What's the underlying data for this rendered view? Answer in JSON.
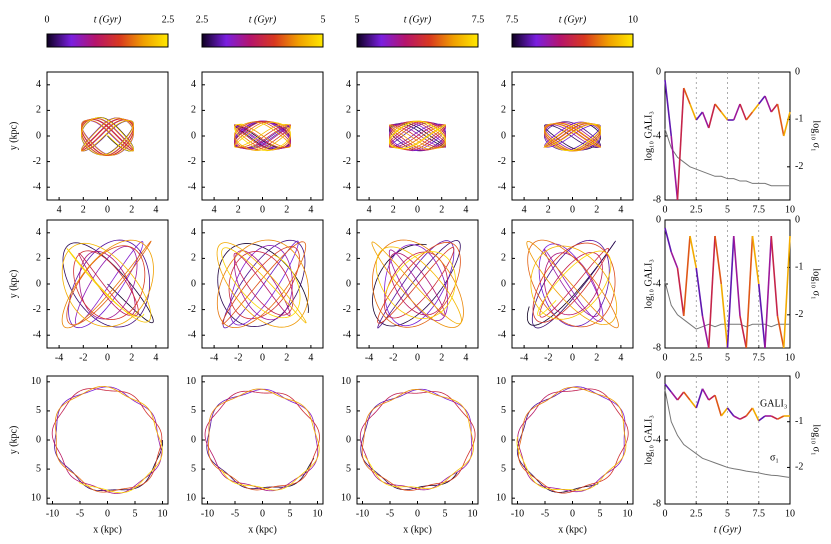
{
  "colormap": [
    "#0d0020",
    "#7a1fe0",
    "#b5146c",
    "#d8381f",
    "#f0a000",
    "#ffe800"
  ],
  "colorbars": [
    {
      "ticks": [
        0,
        2.5
      ],
      "label": "t (Gyr)"
    },
    {
      "ticks": [
        2.5,
        5
      ],
      "label": "t (Gyr)"
    },
    {
      "ticks": [
        5,
        7.5
      ],
      "label": "t (Gyr)"
    },
    {
      "ticks": [
        7.5,
        10
      ],
      "label": "t (Gyr)"
    }
  ],
  "orbit_rows": [
    {
      "xlim": [
        -5,
        5
      ],
      "ylim": [
        -5,
        5
      ],
      "xticks": [
        {
          "value": -4,
          "label": "4"
        },
        {
          "value": -2,
          "label": "2"
        },
        0,
        2,
        4
      ],
      "yticks": [
        4,
        2,
        0,
        -2,
        -4
      ],
      "ylabel": "y (kpc)"
    },
    {
      "xlim": [
        -5,
        5
      ],
      "ylim": [
        -5,
        5
      ],
      "xticks": [
        -4,
        -2,
        0,
        2,
        4
      ],
      "yticks": [
        4,
        2,
        0,
        -2,
        -4
      ],
      "ylabel": "y (kpc)"
    },
    {
      "xlim": [
        -11,
        11
      ],
      "ylim": [
        -11,
        11
      ],
      "xticks": [
        -10,
        -5,
        0,
        5,
        10
      ],
      "yticks": [
        10,
        5,
        0,
        {
          "value": -5,
          "label": "5"
        },
        {
          "value": -10,
          "label": "10"
        }
      ],
      "ylabel": "y (kpc)",
      "xlabel": "x (kpc)"
    }
  ],
  "gali_panels": [
    {
      "ylabel": "log₁₀ GALI₃",
      "y2label": "log₁₀ σ₁",
      "xlim": [
        0,
        10
      ],
      "xticks": [
        0,
        2.5,
        5,
        7.5,
        10
      ],
      "ylim": [
        -8,
        0
      ],
      "yticks": [
        0,
        -4,
        -8
      ],
      "y2lim": [
        -2.7,
        0
      ],
      "y2ticks": [
        0,
        -1,
        -2
      ],
      "t": [
        0,
        0.5,
        1,
        1.5,
        2,
        2.5,
        3,
        3.5,
        4,
        4.5,
        5,
        5.5,
        6,
        6.5,
        7,
        7.5,
        8,
        8.5,
        9,
        9.5,
        10
      ],
      "gali": [
        -0.5,
        -4,
        -8,
        -1,
        -2,
        -3,
        -2.5,
        -3.5,
        -2,
        -2.5,
        -3,
        -3,
        -2,
        -3,
        -2.5,
        -2,
        -1.5,
        -2.5,
        -2,
        -4,
        -2.5
      ],
      "sigma": [
        -1.2,
        -1.6,
        -1.8,
        -1.9,
        -2.0,
        -2.05,
        -2.1,
        -2.15,
        -2.2,
        -2.2,
        -2.25,
        -2.25,
        -2.3,
        -2.3,
        -2.35,
        -2.35,
        -2.35,
        -2.4,
        -2.4,
        -2.4,
        -2.4
      ]
    },
    {
      "ylabel": "log₁₀ GALI₃",
      "y2label": "log₁₀ σ₁",
      "xlim": [
        0,
        10
      ],
      "xticks": [
        0,
        2.5,
        5,
        7.5,
        10
      ],
      "ylim": [
        -8,
        0
      ],
      "yticks": [
        0,
        -4,
        -8
      ],
      "y2lim": [
        -2.7,
        0
      ],
      "y2ticks": [
        0,
        -1,
        -2
      ],
      "t": [
        0,
        0.5,
        1,
        1.5,
        2,
        2.5,
        3,
        3.5,
        4,
        4.5,
        5,
        5.5,
        6,
        6.5,
        7,
        7.5,
        8,
        8.5,
        9,
        9.5,
        10
      ],
      "gali": [
        -0.5,
        -2,
        -3,
        -6,
        -1,
        -3,
        -6,
        -8,
        -1,
        -4,
        -8,
        -1,
        -6,
        -8,
        -1,
        -4,
        -8,
        -1,
        -6,
        -8,
        -1
      ],
      "sigma": [
        -1.3,
        -1.8,
        -2.0,
        -2.1,
        -2.2,
        -2.3,
        -2.25,
        -2.2,
        -2.25,
        -2.2,
        -2.2,
        -2.2,
        -2.2,
        -2.25,
        -2.2,
        -2.2,
        -2.2,
        -2.25,
        -2.2,
        -2.2,
        -2.2
      ]
    },
    {
      "ylabel": "log₁₀ GALI₃",
      "y2label": "log₁₀ σ₁",
      "xlabel": "t (Gyr)",
      "xlim": [
        0,
        10
      ],
      "xticks": [
        0,
        2.5,
        5,
        7.5,
        10
      ],
      "ylim": [
        -8,
        0
      ],
      "yticks": [
        0,
        -4,
        -8
      ],
      "y2lim": [
        -2.8,
        0
      ],
      "y2ticks": [
        0,
        -1,
        -2
      ],
      "t": [
        0,
        0.5,
        1,
        1.5,
        2,
        2.5,
        3,
        3.5,
        4,
        4.5,
        5,
        5.5,
        6,
        6.5,
        7,
        7.5,
        8,
        8.5,
        9,
        9.5,
        10
      ],
      "gali": [
        -0.5,
        -1,
        -1.5,
        -1,
        -1.5,
        -2,
        -0.8,
        -1.5,
        -1.2,
        -2.5,
        -2,
        -2.5,
        -2.7,
        -2.5,
        -2,
        -2.8,
        -2.5,
        -2.5,
        -2.7,
        -2.5,
        -2.5
      ],
      "sigma": [
        -0.3,
        -1.0,
        -1.3,
        -1.5,
        -1.6,
        -1.7,
        -1.8,
        -1.85,
        -1.9,
        -1.95,
        -2.0,
        -2.03,
        -2.05,
        -2.08,
        -2.1,
        -2.12,
        -2.15,
        -2.17,
        -2.18,
        -2.2,
        -2.22
      ],
      "annotations": [
        "GALI₃",
        "σ₁"
      ]
    }
  ]
}
